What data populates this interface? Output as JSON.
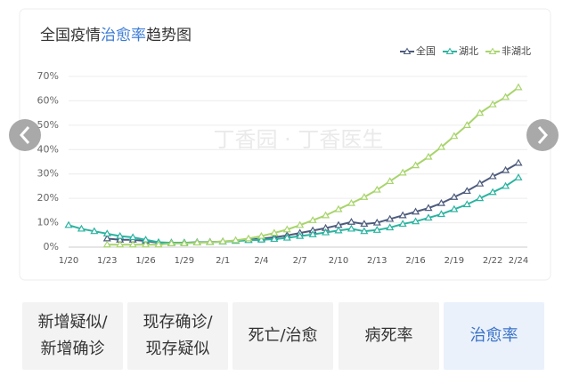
{
  "chart_data": {
    "type": "line",
    "title": {
      "prefix": "全国疫情",
      "highlight": "治愈率",
      "suffix": "趋势图"
    },
    "highlight_color": "#3a7bd5",
    "watermark": "丁香园 · 丁香医生",
    "categories": [
      "1/20",
      null,
      null,
      "1/23",
      null,
      null,
      "1/26",
      null,
      null,
      "1/29",
      null,
      null,
      "2/1",
      null,
      null,
      "2/4",
      null,
      null,
      "2/7",
      null,
      null,
      "2/10",
      null,
      null,
      "2/13",
      null,
      null,
      "2/16",
      null,
      null,
      "2/19",
      null,
      null,
      "2/22",
      null,
      "2/24"
    ],
    "series": [
      {
        "name": "全国",
        "color": "#4d5b7c",
        "values": [
          null,
          null,
          null,
          3.5,
          3,
          3,
          2.5,
          1.8,
          1.8,
          1.8,
          2,
          2.1,
          2.3,
          2.6,
          3,
          3.5,
          4,
          4.8,
          5.8,
          6.8,
          7.8,
          9,
          10.3,
          9.5,
          10,
          11.5,
          13,
          14.5,
          16,
          18,
          20.5,
          23,
          26,
          29,
          31.5,
          34.5
        ]
      },
      {
        "name": "湖北",
        "color": "#2bb3a0",
        "values": [
          9,
          7.5,
          6.5,
          5.5,
          4.5,
          4,
          3,
          2,
          1.8,
          1.8,
          1.9,
          2,
          2.2,
          2.5,
          2.8,
          3,
          3.3,
          3.8,
          4.5,
          5.2,
          6,
          6.8,
          7.5,
          6.5,
          7,
          8,
          9.5,
          10.5,
          12,
          13.5,
          15.5,
          17.5,
          20,
          22.5,
          25,
          28.5
        ]
      },
      {
        "name": "非湖北",
        "color": "#a8d46c",
        "values": [
          null,
          null,
          null,
          1,
          1,
          1,
          1,
          1,
          1.5,
          1.5,
          1.8,
          2,
          2.3,
          2.8,
          3.5,
          4.5,
          5.8,
          7.2,
          9,
          11,
          13,
          15.5,
          18,
          20.5,
          23.5,
          27,
          30.5,
          33.5,
          37,
          41,
          45.5,
          50,
          55,
          58.5,
          61.5,
          65.5
        ]
      }
    ],
    "ylim": [
      0,
      70
    ],
    "yticks": [
      {
        "value": 0,
        "label": "0%"
      },
      {
        "value": 10,
        "label": "10%"
      },
      {
        "value": 20,
        "label": "20%"
      },
      {
        "value": 30,
        "label": "30%"
      },
      {
        "value": 40,
        "label": "40%"
      },
      {
        "value": 50,
        "label": "50%"
      },
      {
        "value": 60,
        "label": "60%"
      },
      {
        "value": 70,
        "label": "70%"
      }
    ],
    "grid": true,
    "legend": "top-right"
  },
  "tabs": [
    {
      "lines": [
        "新增疑似/",
        "新增确诊"
      ],
      "active": false
    },
    {
      "lines": [
        "现存确诊/",
        "现存疑似"
      ],
      "active": false
    },
    {
      "lines": [
        "死亡/治愈"
      ],
      "active": false
    },
    {
      "lines": [
        "病死率"
      ],
      "active": false
    },
    {
      "lines": [
        "治愈率"
      ],
      "active": true
    }
  ]
}
